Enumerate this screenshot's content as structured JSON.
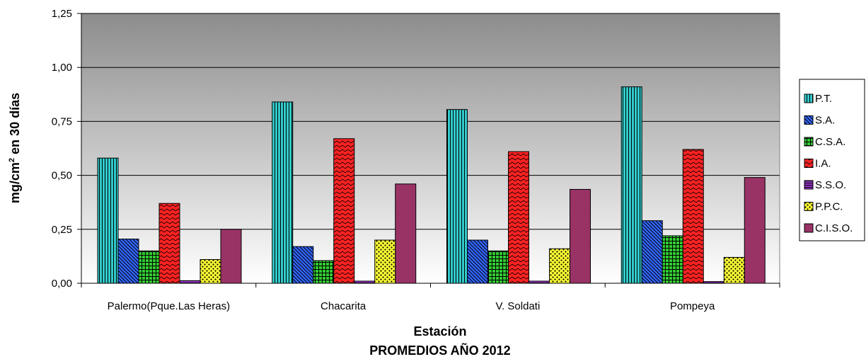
{
  "chart_data": {
    "type": "bar",
    "title": "PROMEDIOS AÑO 2012",
    "xlabel": "Estación",
    "ylabel_main": "mg/cm",
    "ylabel_sup": "2",
    "ylabel_rest": " en 30 días",
    "categories": [
      "Palermo(Pque.Las Heras)",
      "Chacarita",
      "V. Soldati",
      "Pompeya"
    ],
    "ylim": [
      0,
      1.25
    ],
    "yticks": [
      "0,00",
      "0,25",
      "0,50",
      "0,75",
      "1,00",
      "1,25"
    ],
    "grid": true,
    "legend_position": "right",
    "series": [
      {
        "name": "P.T.",
        "values": [
          0.58,
          0.84,
          0.805,
          0.91
        ],
        "color": "#33CCCC",
        "pattern": "vlines"
      },
      {
        "name": "S.A.",
        "values": [
          0.205,
          0.17,
          0.2,
          0.29
        ],
        "color": "#3366FF",
        "pattern": "diag"
      },
      {
        "name": "C.S.A.",
        "values": [
          0.15,
          0.105,
          0.15,
          0.22
        ],
        "color": "#33CC33",
        "pattern": "grid"
      },
      {
        "name": "I.A.",
        "values": [
          0.37,
          0.67,
          0.61,
          0.62
        ],
        "color": "#FF2222",
        "pattern": "zigzag"
      },
      {
        "name": "S.S.O.",
        "values": [
          0.012,
          0.01,
          0.01,
          0.008
        ],
        "color": "#9933CC",
        "pattern": "hlines"
      },
      {
        "name": "P.P.C.",
        "values": [
          0.11,
          0.2,
          0.16,
          0.12
        ],
        "color": "#FFFF33",
        "pattern": "dots"
      },
      {
        "name": "C.I.S.O.",
        "values": [
          0.25,
          0.46,
          0.435,
          0.49
        ],
        "color": "#993366",
        "pattern": "solid"
      }
    ]
  }
}
